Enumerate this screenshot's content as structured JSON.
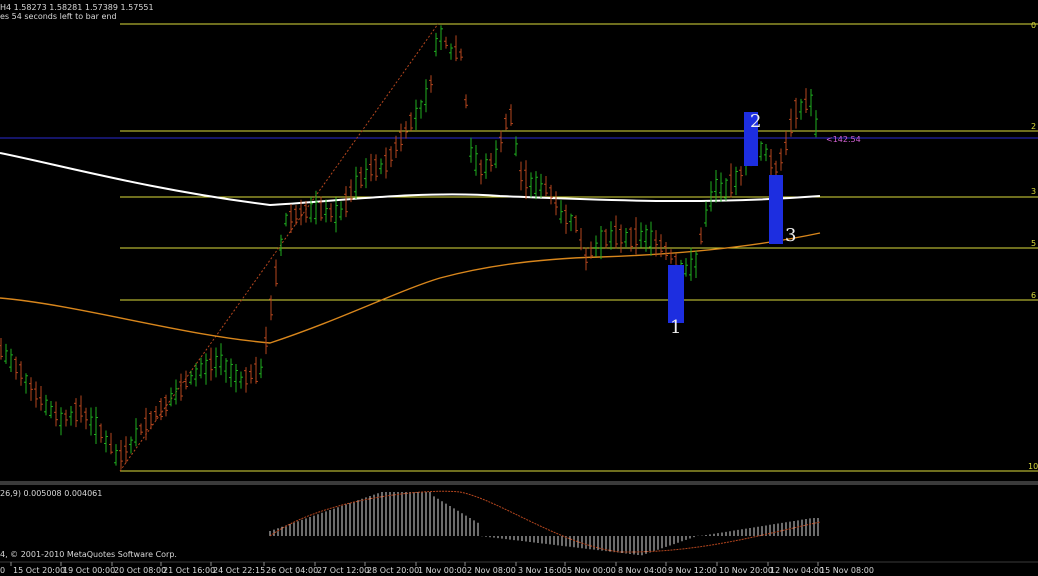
{
  "header": {
    "symbol_line": "H4  1.58273 1.58281 1.57389 1.57551",
    "timer_line": "es 54 seconds left to bar end"
  },
  "chart": {
    "background": "#000000",
    "up_color": "#1fae1f",
    "down_color": "#b5461e",
    "fib_color": "#dcdc3c",
    "ma_long_color": "#ffffff",
    "ma_short_color": "#d8861c",
    "separator_color": "#3a3a3a"
  },
  "fib_labels": [
    "0",
    "2",
    "3",
    "5",
    "6",
    "10"
  ],
  "markers": [
    "1",
    "2",
    "3"
  ],
  "price_label": "<142.54",
  "indicator": {
    "label": "26,9) 0.005008 0.004061"
  },
  "copyright": "4, © 2001-2010 MetaQuotes Software Corp.",
  "time_axis": [
    "0",
    "15 Oct 20:00",
    "19 Oct 00:00",
    "20 Oct 08:00",
    "21 Oct 16:00",
    "24 Oct 22:15",
    "26 Oct 04:00",
    "27 Oct 12:00",
    "28 Oct 20:00",
    "1 Nov 00:00",
    "2 Nov 08:00",
    "3 Nov 16:00",
    "5 Nov 00:00",
    "8 Nov 04:00",
    "9 Nov 12:00",
    "10 Nov 20:00",
    "12 Nov 04:00",
    "15 Nov 08:00"
  ]
}
